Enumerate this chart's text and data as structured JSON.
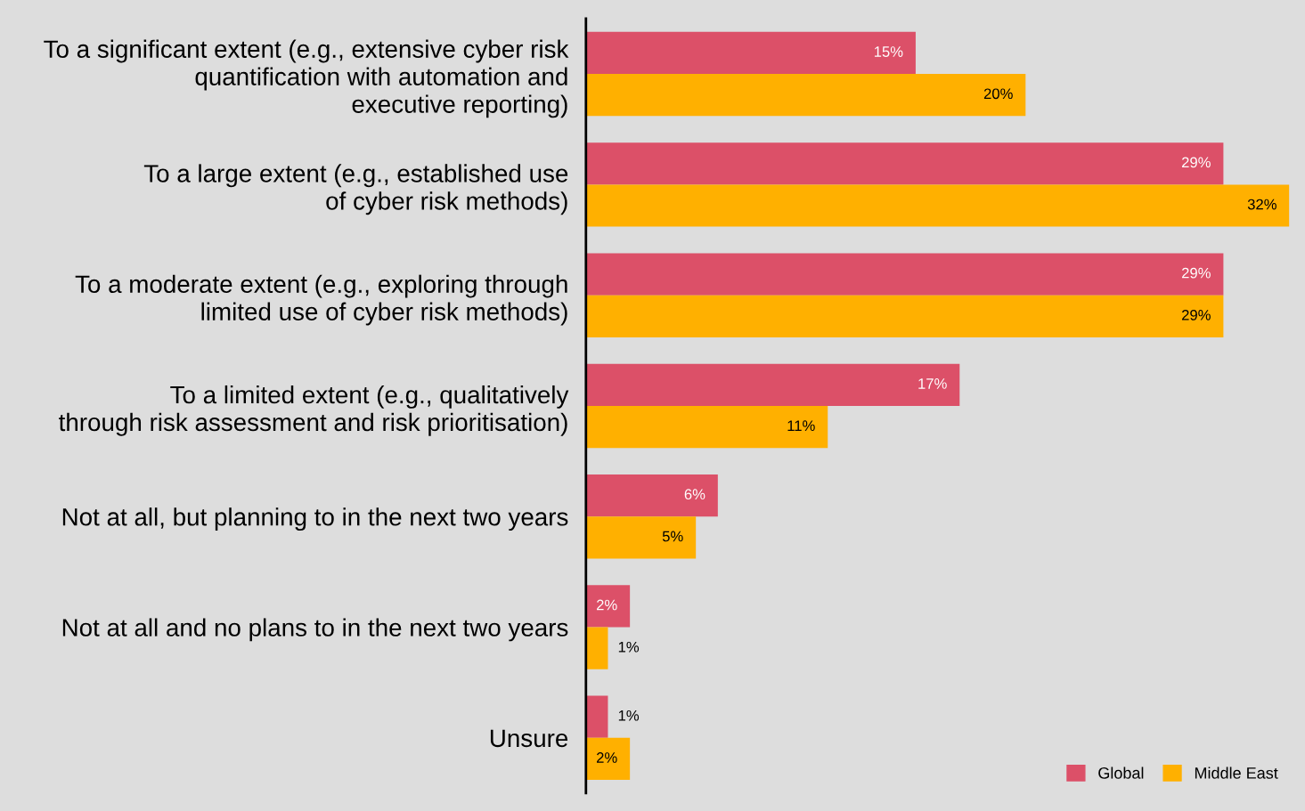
{
  "chart_data": {
    "type": "bar",
    "orientation": "horizontal",
    "categories": [
      "To a significant extent (e.g., extensive cyber risk\nquantification with automation and\nexecutive reporting)",
      "To a large extent (e.g., established use\nof cyber risk methods)",
      "To a moderate extent (e.g., exploring through\nlimited use of cyber risk methods)",
      "To a limited extent (e.g., qualitatively\nthrough risk assessment and risk prioritisation)",
      "Not at all, but planning to in the next two years",
      "Not at all and no plans to in the next two years",
      "Unsure"
    ],
    "series": [
      {
        "name": "Global",
        "color": "#dc5068",
        "values": [
          15,
          29,
          29,
          17,
          6,
          2,
          1
        ],
        "value_labels": [
          "15%",
          "29%",
          "29%",
          "17%",
          "6%",
          "2%",
          "1%"
        ]
      },
      {
        "name": "Middle East",
        "color": "#ffb000",
        "values": [
          20,
          32,
          29,
          11,
          5,
          1,
          2
        ],
        "value_labels": [
          "20%",
          "32%",
          "29%",
          "11%",
          "5%",
          "1%",
          "2%"
        ]
      }
    ],
    "legend": "bottom right",
    "grid": false,
    "tick_labels": "y"
  }
}
